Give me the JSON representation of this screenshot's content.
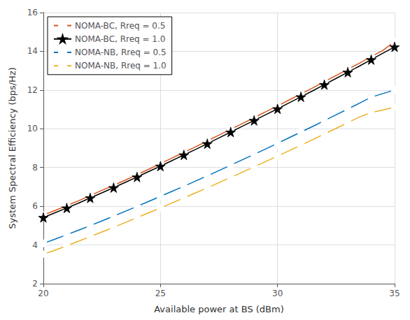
{
  "chart_data": {
    "type": "line",
    "xlabel": "Available power at BS (dBm)",
    "ylabel": "System Spectral Efficiency (bps/Hz)",
    "xlim": [
      20,
      35
    ],
    "ylim": [
      2,
      16
    ],
    "xticks": [
      20,
      25,
      30,
      35
    ],
    "yticks": [
      2,
      4,
      6,
      8,
      10,
      12,
      14,
      16
    ],
    "grid": true,
    "legend": "upper left",
    "x": [
      20,
      20.5,
      21,
      21.5,
      22,
      22.5,
      23,
      23.5,
      24,
      24.5,
      25,
      25.5,
      26,
      26.5,
      27,
      27.5,
      28,
      28.5,
      29,
      29.5,
      30,
      30.5,
      31,
      31.5,
      32,
      32.5,
      33,
      33.5,
      34,
      34.5,
      35
    ],
    "series": [
      {
        "name": "NOMA-BC, Rreq = 0.5",
        "color": "#d95319",
        "marker": "square",
        "values": [
          5.55,
          5.78,
          6.03,
          6.28,
          6.55,
          6.82,
          7.08,
          7.35,
          7.63,
          7.91,
          8.2,
          8.49,
          8.78,
          9.07,
          9.37,
          9.67,
          9.97,
          10.27,
          10.57,
          10.88,
          11.18,
          11.49,
          11.8,
          12.11,
          12.43,
          12.75,
          13.07,
          13.39,
          13.72,
          14.05,
          14.5
        ]
      },
      {
        "name": "NOMA-BC, Rreq = 1.0",
        "color": "#000000",
        "marker": "star",
        "values": [
          5.42,
          5.66,
          5.91,
          6.16,
          6.43,
          6.69,
          6.96,
          7.23,
          7.51,
          7.79,
          8.07,
          8.36,
          8.65,
          8.93,
          9.23,
          9.53,
          9.83,
          10.13,
          10.43,
          10.73,
          11.03,
          11.34,
          11.65,
          11.96,
          12.28,
          12.6,
          12.92,
          13.24,
          13.57,
          13.9,
          14.23
        ]
      },
      {
        "name": "NOMA-NB, Rreq = 0.5",
        "color": "#0072bd",
        "marker": "circle",
        "values": [
          4.08,
          4.3,
          4.53,
          4.76,
          5.0,
          5.24,
          5.49,
          5.74,
          5.99,
          6.25,
          6.51,
          6.77,
          7.03,
          7.3,
          7.57,
          7.84,
          8.12,
          8.4,
          8.68,
          8.96,
          9.25,
          9.54,
          9.83,
          10.12,
          10.42,
          10.72,
          11.02,
          11.32,
          11.63,
          11.82,
          12.0
        ]
      },
      {
        "name": "NOMA-NB, Rreq = 1.0",
        "color": "#edb120",
        "marker": "square",
        "values": [
          3.52,
          3.73,
          3.96,
          4.19,
          4.43,
          4.67,
          4.91,
          5.16,
          5.41,
          5.66,
          5.91,
          6.17,
          6.43,
          6.69,
          6.95,
          7.22,
          7.49,
          7.76,
          8.03,
          8.31,
          8.59,
          8.87,
          9.15,
          9.44,
          9.73,
          10.02,
          10.31,
          10.61,
          10.84,
          10.97,
          11.12
        ]
      }
    ]
  }
}
